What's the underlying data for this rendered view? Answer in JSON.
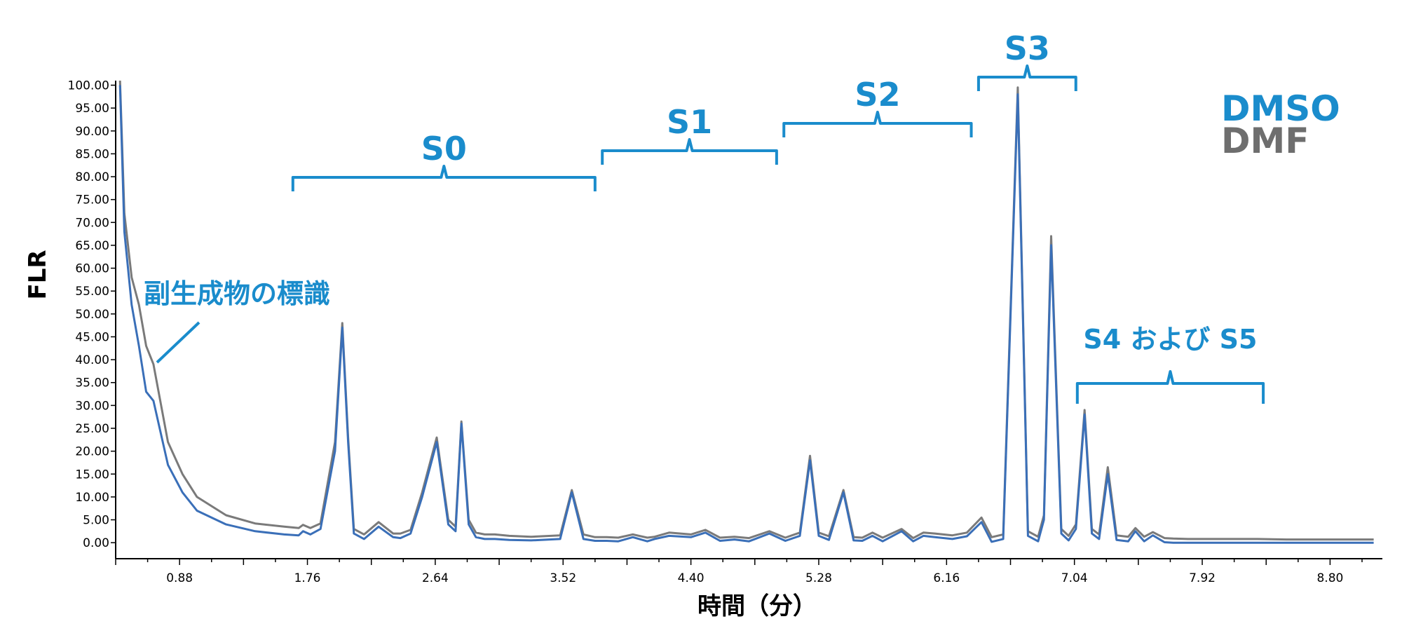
{
  "chart_data": {
    "type": "line",
    "xlabel": "時間（分）",
    "ylabel": "FLR",
    "xlim": [
      0.44,
      9.16
    ],
    "ylim": [
      -3.5,
      101
    ],
    "x_ticks": [
      "0.88",
      "1.76",
      "2.64",
      "3.52",
      "4.40",
      "5.28",
      "6.16",
      "7.04",
      "7.92",
      "8.80"
    ],
    "y_ticks": [
      "0.00",
      "5.00",
      "10.00",
      "15.00",
      "20.00",
      "25.00",
      "30.00",
      "35.00",
      "40.00",
      "45.00",
      "50.00",
      "55.00",
      "60.00",
      "65.00",
      "70.00",
      "75.00",
      "80.00",
      "85.00",
      "90.00",
      "95.00",
      "100.00"
    ],
    "grid": false,
    "legend": {
      "placement": "top-right",
      "entries": [
        {
          "label": "DMSO",
          "color": "#1a8ccc"
        },
        {
          "label": "DMF",
          "color": "#6e6e6e"
        }
      ]
    },
    "series": [
      {
        "name": "DMSO",
        "color": "#3a6fb8",
        "x": [
          0.47,
          0.5,
          0.55,
          0.6,
          0.65,
          0.7,
          0.8,
          0.9,
          1.0,
          1.2,
          1.4,
          1.6,
          1.7,
          1.73,
          1.78,
          1.85,
          1.95,
          2.0,
          2.04,
          2.08,
          2.15,
          2.25,
          2.35,
          2.4,
          2.47,
          2.55,
          2.65,
          2.73,
          2.78,
          2.82,
          2.87,
          2.92,
          2.98,
          3.05,
          3.15,
          3.3,
          3.5,
          3.58,
          3.66,
          3.74,
          3.82,
          3.9,
          4.0,
          4.1,
          4.15,
          4.25,
          4.4,
          4.5,
          4.6,
          4.7,
          4.8,
          4.94,
          5.05,
          5.15,
          5.22,
          5.28,
          5.35,
          5.45,
          5.52,
          5.58,
          5.65,
          5.72,
          5.85,
          5.93,
          6.0,
          6.08,
          6.2,
          6.3,
          6.4,
          6.47,
          6.55,
          6.65,
          6.72,
          6.79,
          6.83,
          6.88,
          6.95,
          7.0,
          7.05,
          7.11,
          7.16,
          7.21,
          7.27,
          7.33,
          7.41,
          7.46,
          7.52,
          7.58,
          7.66,
          7.72,
          7.82,
          7.88,
          7.95,
          8.0,
          8.1,
          8.3,
          8.5,
          8.8,
          9.1
        ],
        "y": [
          100,
          68,
          52,
          43,
          33,
          31,
          17,
          11,
          7,
          4,
          2.5,
          1.8,
          1.6,
          2.5,
          1.8,
          3,
          20,
          47,
          22,
          2,
          0.8,
          3.5,
          1.2,
          1,
          2,
          10,
          22,
          4,
          2.5,
          26,
          4,
          1.2,
          0.8,
          0.8,
          0.6,
          0.5,
          0.8,
          11,
          0.8,
          0.4,
          0.4,
          0.3,
          1.2,
          0.3,
          0.8,
          1.5,
          1.2,
          2.2,
          0.4,
          0.7,
          0.3,
          2,
          0.4,
          1.5,
          18,
          1.5,
          0.6,
          11,
          0.5,
          0.4,
          1.5,
          0.3,
          2.5,
          0.3,
          1.5,
          1.2,
          0.8,
          1.4,
          4.5,
          0.2,
          0.8,
          98,
          1.5,
          0.3,
          5,
          65,
          2,
          0.5,
          3,
          28,
          2,
          0.8,
          15,
          0.6,
          0.3,
          2.5,
          0.3,
          1.6,
          0.1,
          0,
          0,
          0,
          0,
          0,
          0,
          0,
          0,
          0,
          0
        ]
      },
      {
        "name": "DMF",
        "color": "#7a7a7a",
        "x": [
          0.47,
          0.5,
          0.55,
          0.6,
          0.65,
          0.7,
          0.8,
          0.9,
          1.0,
          1.2,
          1.4,
          1.6,
          1.7,
          1.73,
          1.78,
          1.85,
          1.95,
          2.0,
          2.04,
          2.08,
          2.15,
          2.25,
          2.35,
          2.4,
          2.47,
          2.55,
          2.65,
          2.73,
          2.78,
          2.82,
          2.87,
          2.92,
          2.98,
          3.05,
          3.15,
          3.3,
          3.5,
          3.58,
          3.66,
          3.74,
          3.82,
          3.9,
          4.0,
          4.1,
          4.15,
          4.25,
          4.4,
          4.5,
          4.6,
          4.7,
          4.8,
          4.94,
          5.05,
          5.15,
          5.22,
          5.28,
          5.35,
          5.45,
          5.52,
          5.58,
          5.65,
          5.72,
          5.85,
          5.93,
          6.0,
          6.08,
          6.2,
          6.3,
          6.4,
          6.47,
          6.55,
          6.65,
          6.72,
          6.79,
          6.83,
          6.88,
          6.95,
          7.0,
          7.05,
          7.11,
          7.16,
          7.21,
          7.27,
          7.33,
          7.41,
          7.46,
          7.52,
          7.58,
          7.66,
          7.72,
          7.82,
          7.88,
          7.95,
          8.0,
          8.1,
          8.3,
          8.5,
          8.8,
          9.1
        ],
        "y": [
          102,
          72,
          58,
          52,
          43,
          39,
          22,
          15,
          10,
          6,
          4.2,
          3.5,
          3.2,
          3.9,
          3.2,
          4.2,
          22,
          48,
          23,
          3,
          1.8,
          4.5,
          2,
          2,
          2.8,
          11,
          23,
          5,
          3.5,
          26.5,
          5,
          2.2,
          1.8,
          1.8,
          1.5,
          1.3,
          1.6,
          11.5,
          1.8,
          1.2,
          1.2,
          1.1,
          1.8,
          1.1,
          1.3,
          2.2,
          1.8,
          2.8,
          1.1,
          1.3,
          1,
          2.5,
          1.1,
          2.2,
          19,
          2.2,
          1.4,
          11.5,
          1.2,
          1.1,
          2.2,
          1.1,
          3,
          1,
          2.2,
          2,
          1.6,
          2.2,
          5.5,
          1.2,
          1.8,
          99.5,
          2.5,
          1.3,
          6,
          67,
          3,
          1.5,
          4,
          29,
          3,
          1.8,
          16.5,
          1.6,
          1.3,
          3.2,
          1.3,
          2.3,
          1,
          0.9,
          0.8,
          0.8,
          0.8,
          0.8,
          0.8,
          0.8,
          0.7,
          0.7,
          0.7
        ]
      }
    ],
    "regions": [
      {
        "label": "S0",
        "x_start": 1.66,
        "x_end": 3.74
      },
      {
        "label": "S1",
        "x_start": 3.79,
        "x_end": 4.99
      },
      {
        "label": "S2",
        "x_start": 5.04,
        "x_end": 6.33
      },
      {
        "label": "S3",
        "x_start": 6.38,
        "x_end": 7.05
      },
      {
        "label": "S4 および S5",
        "x_start": 7.06,
        "x_end": 8.34
      }
    ],
    "annotation": "副生成物の標識"
  },
  "colors": {
    "accent": "#1a8ccc",
    "dmso_line": "#3a6fb8",
    "dmf_line": "#7a7a7a",
    "axis": "#000000"
  }
}
